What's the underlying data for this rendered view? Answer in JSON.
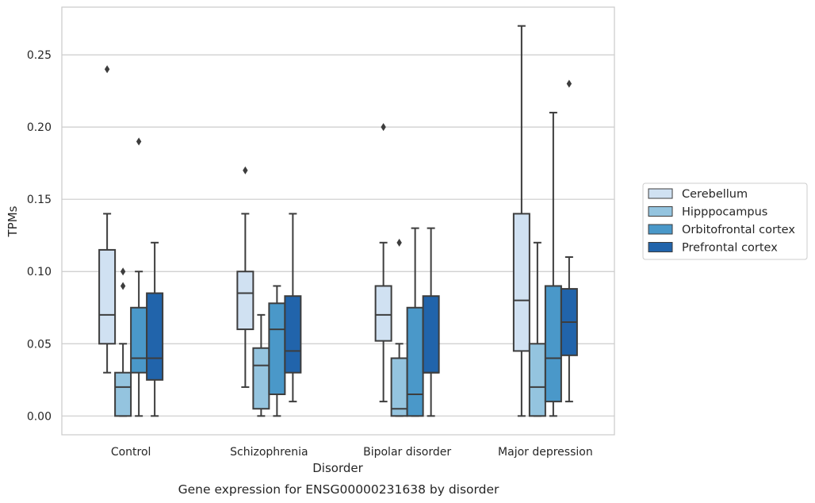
{
  "caption": "Gene expression for ENSG00000231638 by disorder",
  "chart_data": {
    "type": "box",
    "xlabel": "Disorder",
    "ylabel": "TPMs",
    "ylim": [
      -0.013,
      0.283
    ],
    "yticks": [
      "0.00",
      "0.05",
      "0.10",
      "0.15",
      "0.20",
      "0.25"
    ],
    "categories": [
      "Control",
      "Schizophrenia",
      "Bipolar disorder",
      "Major depression"
    ],
    "grid": "horizontal",
    "legend_position": "right-outside",
    "series": [
      {
        "name": "Cerebellum",
        "color": "#d0e1f2",
        "boxes": [
          {
            "whislo": 0.03,
            "q1": 0.05,
            "med": 0.07,
            "q3": 0.115,
            "whishi": 0.14,
            "fliers": [
              0.24
            ]
          },
          {
            "whislo": 0.02,
            "q1": 0.06,
            "med": 0.085,
            "q3": 0.1,
            "whishi": 0.14,
            "fliers": [
              0.17
            ]
          },
          {
            "whislo": 0.01,
            "q1": 0.052,
            "med": 0.07,
            "q3": 0.09,
            "whishi": 0.12,
            "fliers": [
              0.2
            ]
          },
          {
            "whislo": 0.0,
            "q1": 0.045,
            "med": 0.08,
            "q3": 0.14,
            "whishi": 0.27,
            "fliers": []
          }
        ]
      },
      {
        "name": "Hipppocampus",
        "color": "#94c4df",
        "boxes": [
          {
            "whislo": 0.0,
            "q1": 0.0,
            "med": 0.02,
            "q3": 0.03,
            "whishi": 0.05,
            "fliers": [
              0.09,
              0.1
            ]
          },
          {
            "whislo": 0.0,
            "q1": 0.005,
            "med": 0.035,
            "q3": 0.047,
            "whishi": 0.07,
            "fliers": []
          },
          {
            "whislo": 0.0,
            "q1": 0.0,
            "med": 0.005,
            "q3": 0.04,
            "whishi": 0.05,
            "fliers": [
              0.12
            ]
          },
          {
            "whislo": 0.0,
            "q1": 0.0,
            "med": 0.02,
            "q3": 0.05,
            "whishi": 0.12,
            "fliers": []
          }
        ]
      },
      {
        "name": "Orbitofrontal cortex",
        "color": "#4a98c9",
        "boxes": [
          {
            "whislo": 0.0,
            "q1": 0.03,
            "med": 0.04,
            "q3": 0.075,
            "whishi": 0.1,
            "fliers": [
              0.19
            ]
          },
          {
            "whislo": 0.0,
            "q1": 0.015,
            "med": 0.06,
            "q3": 0.078,
            "whishi": 0.09,
            "fliers": []
          },
          {
            "whislo": 0.0,
            "q1": 0.0,
            "med": 0.015,
            "q3": 0.075,
            "whishi": 0.13,
            "fliers": []
          },
          {
            "whislo": 0.0,
            "q1": 0.01,
            "med": 0.04,
            "q3": 0.09,
            "whishi": 0.21,
            "fliers": []
          }
        ]
      },
      {
        "name": "Prefrontal cortex",
        "color": "#2164ab",
        "boxes": [
          {
            "whislo": 0.0,
            "q1": 0.025,
            "med": 0.04,
            "q3": 0.085,
            "whishi": 0.12,
            "fliers": []
          },
          {
            "whislo": 0.01,
            "q1": 0.03,
            "med": 0.045,
            "q3": 0.083,
            "whishi": 0.14,
            "fliers": []
          },
          {
            "whislo": 0.0,
            "q1": 0.03,
            "med": 0.03,
            "q3": 0.083,
            "whishi": 0.13,
            "fliers": []
          },
          {
            "whislo": 0.01,
            "q1": 0.042,
            "med": 0.065,
            "q3": 0.088,
            "whishi": 0.11,
            "fliers": [
              0.23
            ]
          }
        ]
      }
    ]
  }
}
